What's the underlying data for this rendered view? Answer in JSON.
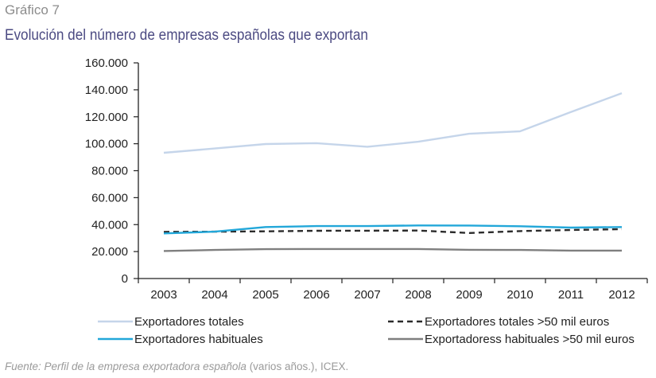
{
  "caption": "Gráfico 7",
  "title": "Evolución del número de empresas españolas que exportan",
  "source": {
    "italic": "Fuente: Perfil de la empresa exportadora española",
    "normal": " (varios años.), ICEX."
  },
  "chart_data": {
    "type": "line",
    "title": "Evolución del número de empresas españolas que exportan",
    "xlabel": "",
    "ylabel": "",
    "categories": [
      "2003",
      "2004",
      "2005",
      "2006",
      "2007",
      "2008",
      "2009",
      "2010",
      "2011",
      "2012"
    ],
    "ylim": [
      0,
      160000
    ],
    "yticks": [
      0,
      20000,
      40000,
      60000,
      80000,
      100000,
      120000,
      140000,
      160000
    ],
    "ytick_labels": [
      "0",
      "20.000",
      "40.000",
      "60.000",
      "80.000",
      "100.000",
      "120.000",
      "140.000",
      "160.000"
    ],
    "grid": false,
    "legend_position": "bottom",
    "series": [
      {
        "name": "Exportadores totales",
        "color": "#c5d5ea",
        "dash": "solid",
        "values": [
          93300,
          96500,
          99800,
          100400,
          97800,
          101500,
          107400,
          109200,
          123500,
          137500
        ]
      },
      {
        "name": "Exportadores totales >50 mil euros",
        "color": "#2b2b2b",
        "dash": "dashed",
        "values": [
          34600,
          34800,
          35000,
          35400,
          35500,
          35600,
          33800,
          35200,
          36000,
          36600
        ]
      },
      {
        "name": "Exportadores habituales",
        "color": "#22a7d9",
        "dash": "solid",
        "values": [
          33500,
          34800,
          38200,
          38900,
          38900,
          39400,
          39300,
          38800,
          37800,
          38200
        ]
      },
      {
        "name": "Exportadoress habituales >50 mil euros",
        "color": "#7f7f7f",
        "dash": "solid",
        "values": [
          20400,
          21200,
          21800,
          21900,
          21900,
          21900,
          21300,
          21200,
          20700,
          20700
        ]
      }
    ]
  }
}
